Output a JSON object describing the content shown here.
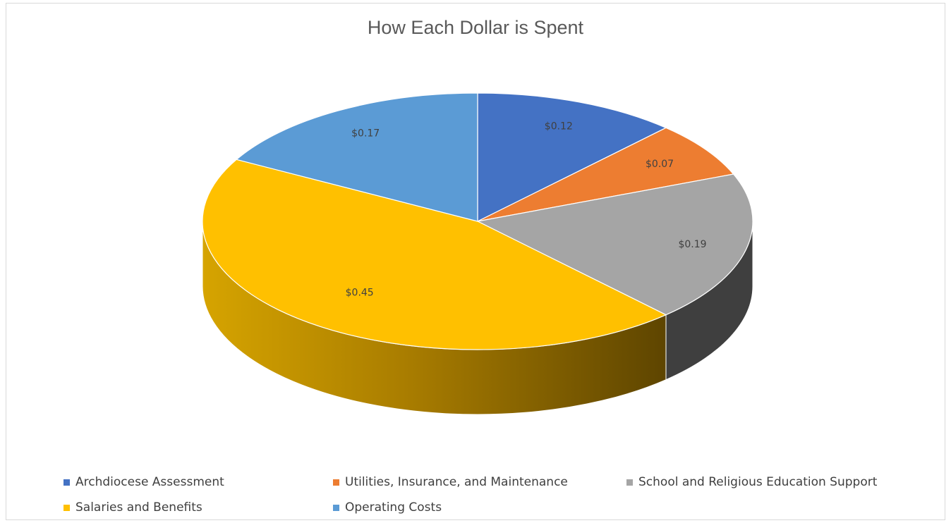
{
  "chart_data": {
    "type": "pie",
    "title": "How Each Dollar is Spent",
    "slices": [
      {
        "name": "Archdiocese Assessment",
        "value": 0.12,
        "label": "$0.12",
        "color": "#4472C4",
        "side_color": "#27457a"
      },
      {
        "name": "Utilities, Insurance, and Maintenance",
        "value": 0.07,
        "label": "$0.07",
        "color": "#ED7D31",
        "side_color": "#8f4716"
      },
      {
        "name": "School and Religious Education Support",
        "value": 0.19,
        "label": "$0.19",
        "color": "#A5A5A5",
        "side_color": "#3f3f3f"
      },
      {
        "name": "Salaries and Benefits",
        "value": 0.45,
        "label": "$0.45",
        "color": "#FFC000",
        "side_color": "#d4a100"
      },
      {
        "name": "Operating Costs",
        "value": 0.17,
        "label": "$0.17",
        "color": "#5B9BD5",
        "side_color": "#305f8a"
      }
    ],
    "start_angle_deg": 0,
    "direction": "clockwise",
    "style": "3d",
    "legend": "bottom",
    "label_color": "#404040"
  }
}
